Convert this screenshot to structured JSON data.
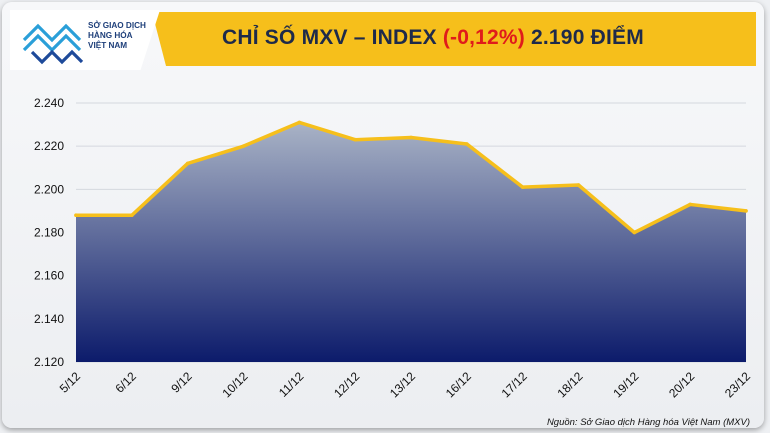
{
  "header": {
    "title_prefix": "CHỈ SỐ MXV – INDEX ",
    "title_change": "(-0,12%)",
    "title_suffix": " 2.190 ĐIỂM"
  },
  "logo": {
    "line1": "SỞ GIAO DỊCH",
    "line2": "HÀNG HÓA",
    "line3": "VIỆT NAM"
  },
  "source": "Nguồn: Sở Giao dịch Hàng hóa Việt Nam (MXV)",
  "colors": {
    "accent": "#f6bf1b",
    "area_top": "#a9b3c6",
    "area_bottom": "#0c1b6b",
    "line": "#f6bf1b",
    "negative": "#e01b1b",
    "title": "#1e2a4a"
  },
  "chart_data": {
    "type": "area",
    "title": "CHỈ SỐ MXV – INDEX (-0,12%) 2.190 ĐIỂM",
    "xlabel": "",
    "ylabel": "",
    "categories": [
      "5/12",
      "6/12",
      "9/12",
      "10/12",
      "11/12",
      "12/12",
      "13/12",
      "16/12",
      "17/12",
      "18/12",
      "19/12",
      "20/12",
      "23/12"
    ],
    "values": [
      2188,
      2188,
      2212,
      2220,
      2231,
      2223,
      2224,
      2221,
      2201,
      2202,
      2180,
      2193,
      2190
    ],
    "ylim": [
      2120,
      2240
    ],
    "yticks": [
      "2.120",
      "2.140",
      "2.160",
      "2.180",
      "2.200",
      "2.220",
      "2.240"
    ],
    "ytick_values": [
      2120,
      2140,
      2160,
      2180,
      2200,
      2220,
      2240
    ],
    "grid": true,
    "legend": "none"
  }
}
